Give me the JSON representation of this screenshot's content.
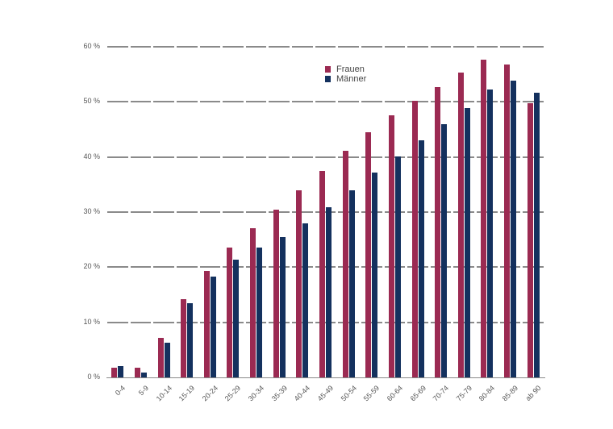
{
  "chart_data": {
    "type": "bar",
    "title": "",
    "xlabel": "",
    "ylabel": "",
    "ylim": [
      0,
      60
    ],
    "yticks": [
      0,
      10,
      20,
      30,
      40,
      50,
      60
    ],
    "ytick_labels": [
      "0 %",
      "10 %",
      "20 %",
      "30 %",
      "40 %",
      "50 %",
      "60 %"
    ],
    "grid": true,
    "legend_position": "top-center",
    "categories": [
      "0-4",
      "5-9",
      "10-14",
      "15-19",
      "20-24",
      "25-29",
      "30-34",
      "35-39",
      "40-44",
      "45-49",
      "50-54",
      "55-59",
      "60-64",
      "65-69",
      "70-74",
      "75-79",
      "80-84",
      "85-89",
      "ab 90"
    ],
    "series": [
      {
        "name": "Frauen",
        "color": "#9b2a52",
        "values": [
          1.7,
          1.7,
          7.1,
          14.2,
          19.3,
          23.5,
          27.1,
          30.4,
          33.9,
          37.5,
          41.1,
          44.5,
          47.5,
          50.2,
          52.7,
          55.3,
          57.6,
          56.8,
          49.7
        ]
      },
      {
        "name": "Männer",
        "color": "#14315e",
        "values": [
          2.0,
          0.9,
          6.3,
          13.5,
          18.3,
          21.4,
          23.5,
          25.4,
          27.9,
          30.9,
          34.0,
          37.1,
          40.1,
          43.0,
          45.9,
          48.9,
          52.2,
          53.8,
          51.6
        ]
      }
    ]
  }
}
